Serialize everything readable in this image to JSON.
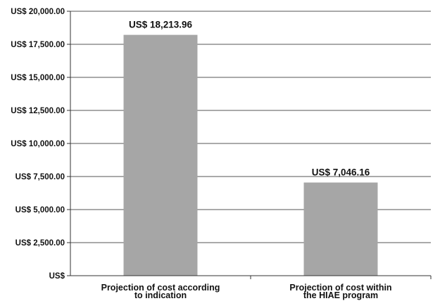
{
  "chart_data": {
    "type": "bar",
    "title": "",
    "xlabel": "",
    "ylabel": "",
    "categories": [
      [
        "Projection of cost according",
        "to indication"
      ],
      [
        "Projection of cost within",
        "the HIAE program"
      ]
    ],
    "values": [
      18213.96,
      7046.16
    ],
    "data_labels": [
      "US$ 18,213.96",
      "US$ 7,046.16"
    ],
    "ylim": [
      0,
      20000
    ],
    "yticks": [
      0,
      2500,
      5000,
      7500,
      10000,
      12500,
      15000,
      17500,
      20000
    ],
    "ytick_labels": [
      "US$",
      "US$ 2,500.00",
      "US$ 5,000.00",
      "US$ 7,500.00",
      "US$ 10,000.00",
      "US$ 12,500.00",
      "US$ 15,000.00",
      "US$ 17,500.00",
      "US$ 20,000.00"
    ],
    "grid": true,
    "legend": "none",
    "colors": {
      "bar": "#a6a6a6",
      "grid": "#555555",
      "axis": "#333333"
    }
  }
}
